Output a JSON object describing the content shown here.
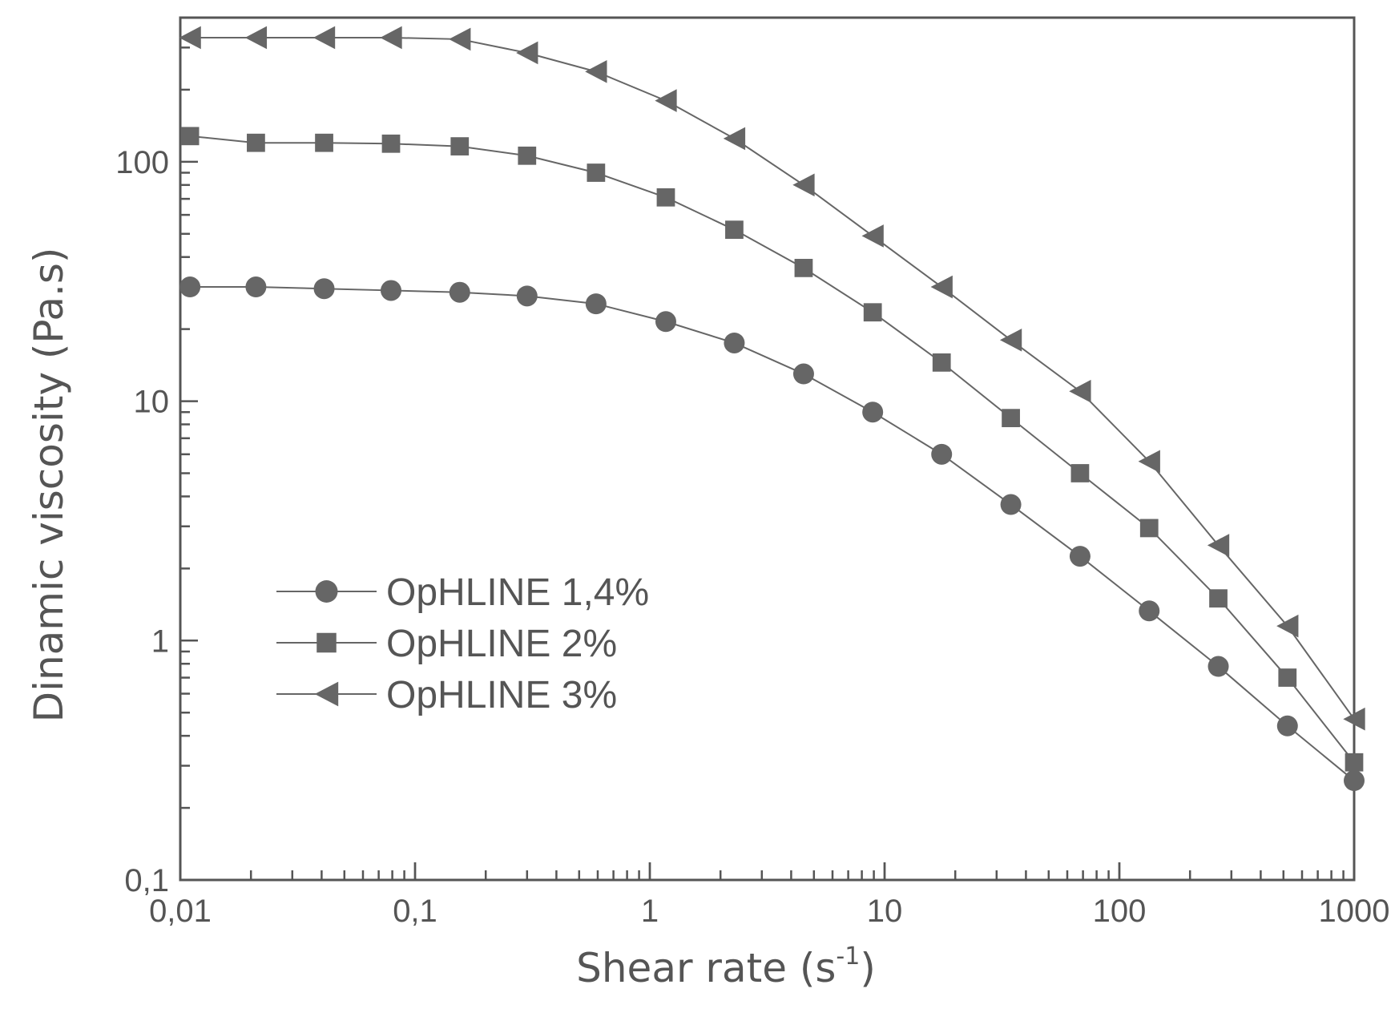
{
  "chart_data": {
    "type": "line",
    "x_scale": "log",
    "y_scale": "log",
    "xlabel": "Shear rate (s-1)",
    "xlabel_parts": {
      "main": "Shear rate (s",
      "sup": "-1",
      "close": ")"
    },
    "ylabel": "Dinamic viscosity (Pa.s)",
    "xlim": [
      0.01,
      1000
    ],
    "ylim": [
      0.1,
      400
    ],
    "x_ticks": [
      {
        "value": 0.01,
        "label": "0,01"
      },
      {
        "value": 0.1,
        "label": "0,1"
      },
      {
        "value": 1,
        "label": "1"
      },
      {
        "value": 10,
        "label": "10"
      },
      {
        "value": 100,
        "label": "100"
      },
      {
        "value": 1000,
        "label": "1000"
      }
    ],
    "y_ticks": [
      {
        "value": 0.1,
        "label": "0,1"
      },
      {
        "value": 1,
        "label": "1"
      },
      {
        "value": 10,
        "label": "10"
      },
      {
        "value": 100,
        "label": "100"
      }
    ],
    "grid": false,
    "legend_position": "left, lower-middle",
    "x": [
      0.011,
      0.021,
      0.041,
      0.079,
      0.155,
      0.3,
      0.59,
      1.17,
      2.29,
      4.52,
      8.9,
      17.5,
      34.5,
      68,
      134,
      264,
      520,
      1000
    ],
    "series": [
      {
        "name": "OpHLINE 1,4%",
        "marker": "circle",
        "values": [
          30,
          30,
          29.5,
          29,
          28.5,
          27.5,
          25.5,
          21.5,
          17.5,
          13,
          9,
          6,
          3.7,
          2.25,
          1.33,
          0.78,
          0.44,
          0.26
        ]
      },
      {
        "name": "OpHLINE 2%",
        "marker": "square",
        "values": [
          128,
          120,
          120,
          119,
          116,
          106,
          90,
          71,
          52,
          36,
          23.5,
          14.5,
          8.5,
          5,
          2.95,
          1.5,
          0.7,
          0.31
        ]
      },
      {
        "name": "OpHLINE 3%",
        "marker": "triangle-left",
        "values": [
          330,
          330,
          330,
          330,
          325,
          285,
          238,
          180,
          125,
          80,
          49,
          30,
          18,
          11,
          5.6,
          2.5,
          1.15,
          0.47
        ]
      }
    ],
    "colors": {
      "axis": "#555555",
      "marker": "#666666",
      "line": "#666666"
    }
  }
}
